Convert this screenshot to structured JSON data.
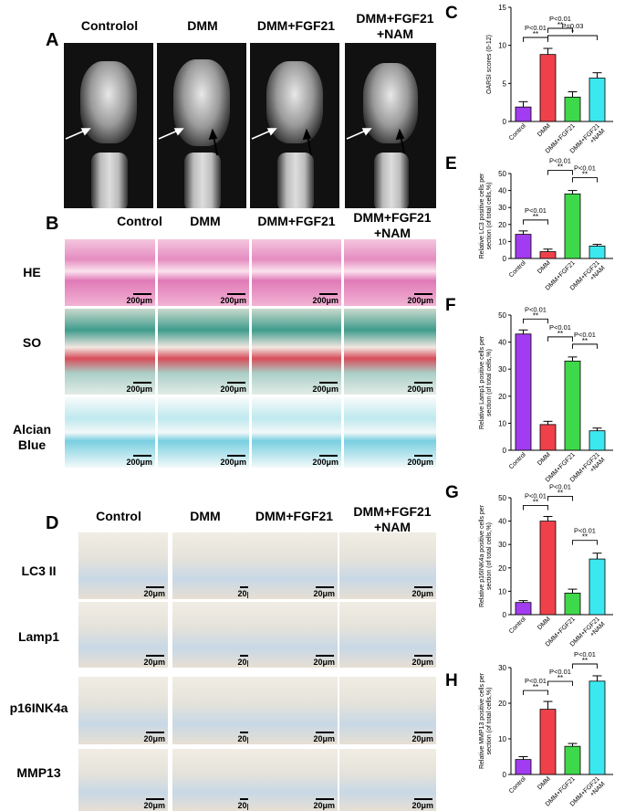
{
  "panel_labels": {
    "A": "A",
    "B": "B",
    "C": "C",
    "D": "D",
    "E": "E",
    "F": "F",
    "G": "G",
    "H": "H"
  },
  "panel_a": {
    "headers": [
      "Controlol",
      "DMM",
      "DMM+FGF21",
      "DMM+FGF21\n+NAM"
    ]
  },
  "panel_b": {
    "headers": [
      "Control",
      "DMM",
      "DMM+FGF21",
      "DMM+FGF21\n+NAM"
    ],
    "rows": [
      "HE",
      "SO",
      "Alcian\nBlue"
    ],
    "scale": "200μm"
  },
  "panel_d": {
    "headers": [
      "Control",
      "DMM",
      "DMM+FGF21",
      "DMM+FGF21\n+NAM"
    ],
    "rows": [
      "LC3 II",
      "Lamp1",
      "p16INK4a",
      "MMP13"
    ],
    "scale": "20μm"
  },
  "chart_data": [
    {
      "id": "C",
      "type": "bar",
      "ylabel": "OARSI scores (0-12)",
      "ylim": [
        0,
        15
      ],
      "yticks": [
        0,
        5,
        10,
        15
      ],
      "categories": [
        "Control",
        "DMM",
        "DMM+FGF21",
        "DMM+FGF21\n+NAM"
      ],
      "values": [
        1.9,
        8.8,
        3.2,
        5.7
      ],
      "errors": [
        0.7,
        0.8,
        0.7,
        0.7
      ],
      "colors": [
        "#a23cf0",
        "#f0414a",
        "#3fd84a",
        "#3be8f0"
      ],
      "annotations": [
        {
          "from": 0,
          "to": 1,
          "p": "P<0.01",
          "stars": "**",
          "level": 0
        },
        {
          "from": 1,
          "to": 2,
          "p": "P<0.01",
          "stars": "**",
          "level": 1
        },
        {
          "from": 1,
          "to": 3,
          "p": "P=0.03",
          "stars": "*",
          "level": 2
        }
      ]
    },
    {
      "id": "E",
      "type": "bar",
      "ylabel": "Relative LC3 positive cells per\nsection (of total cells,%)",
      "ylim": [
        0,
        50
      ],
      "yticks": [
        0,
        10,
        20,
        30,
        40,
        50
      ],
      "categories": [
        "Control",
        "DMM",
        "DMM+FGF21",
        "DMM+FGF21\n+NAM"
      ],
      "values": [
        14.2,
        4,
        38,
        7.3
      ],
      "errors": [
        2,
        1.5,
        2,
        1
      ],
      "colors": [
        "#a23cf0",
        "#f0414a",
        "#3fd84a",
        "#3be8f0"
      ],
      "annotations": [
        {
          "from": 0,
          "to": 1,
          "p": "P<0.01",
          "stars": "**",
          "level": 0
        },
        {
          "from": 1,
          "to": 2,
          "p": "P<0.01",
          "stars": "**",
          "level": 1
        },
        {
          "from": 2,
          "to": 3,
          "p": "P<0.01",
          "stars": "**",
          "level": 2
        }
      ]
    },
    {
      "id": "F",
      "type": "bar",
      "ylabel": "Relative Lamp1 positive cells per\nsection (of total cells,%)",
      "ylim": [
        0,
        50
      ],
      "yticks": [
        0,
        10,
        20,
        30,
        40,
        50
      ],
      "categories": [
        "Control",
        "DMM",
        "DMM+FGF21",
        "DMM+FGF21\n+NAM"
      ],
      "values": [
        43,
        9.5,
        33,
        7.2
      ],
      "errors": [
        1.5,
        1.2,
        1.5,
        1
      ],
      "colors": [
        "#a23cf0",
        "#f0414a",
        "#3fd84a",
        "#3be8f0"
      ],
      "annotations": [
        {
          "from": 0,
          "to": 1,
          "p": "P<0.01",
          "stars": "**",
          "level": 0
        },
        {
          "from": 1,
          "to": 2,
          "p": "P<0.01",
          "stars": "**",
          "level": 1
        },
        {
          "from": 2,
          "to": 3,
          "p": "P<0.01",
          "stars": "**",
          "level": 2
        }
      ]
    },
    {
      "id": "G",
      "type": "bar",
      "ylabel": "Relative p16INK4a positive cells per\nsection (of total cells,%)",
      "ylim": [
        0,
        50
      ],
      "yticks": [
        0,
        10,
        20,
        30,
        40,
        50
      ],
      "categories": [
        "Control",
        "DMM",
        "DMM+FGF21",
        "DMM+FGF21\n+NAM"
      ],
      "values": [
        5.2,
        40,
        9.2,
        23.8
      ],
      "errors": [
        0.8,
        2,
        1.7,
        2.5
      ],
      "colors": [
        "#a23cf0",
        "#f0414a",
        "#3fd84a",
        "#3be8f0"
      ],
      "annotations": [
        {
          "from": 0,
          "to": 1,
          "p": "P<0.01",
          "stars": "**",
          "level": 0
        },
        {
          "from": 1,
          "to": 2,
          "p": "P<0.01",
          "stars": "**",
          "level": 1
        },
        {
          "from": 2,
          "to": 3,
          "p": "P<0.01",
          "stars": "**",
          "level": 2
        }
      ]
    },
    {
      "id": "H",
      "type": "bar",
      "ylabel": "Relative MMP13 positive cells per\nsection (of total cells,%)",
      "ylim": [
        0,
        30
      ],
      "yticks": [
        0,
        10,
        20,
        30
      ],
      "categories": [
        "Control",
        "DMM",
        "DMM+FGF21",
        "DMM+FGF21\n+NAM"
      ],
      "values": [
        4.2,
        18.3,
        7.9,
        26.2
      ],
      "errors": [
        0.8,
        2.2,
        0.8,
        1.5
      ],
      "colors": [
        "#a23cf0",
        "#f0414a",
        "#3fd84a",
        "#3be8f0"
      ],
      "annotations": [
        {
          "from": 0,
          "to": 1,
          "p": "P<0.01",
          "stars": "**",
          "level": 0
        },
        {
          "from": 1,
          "to": 2,
          "p": "P<0.01",
          "stars": "**",
          "level": 1
        },
        {
          "from": 2,
          "to": 3,
          "p": "P<0.01",
          "stars": "**",
          "level": 2
        }
      ]
    }
  ]
}
